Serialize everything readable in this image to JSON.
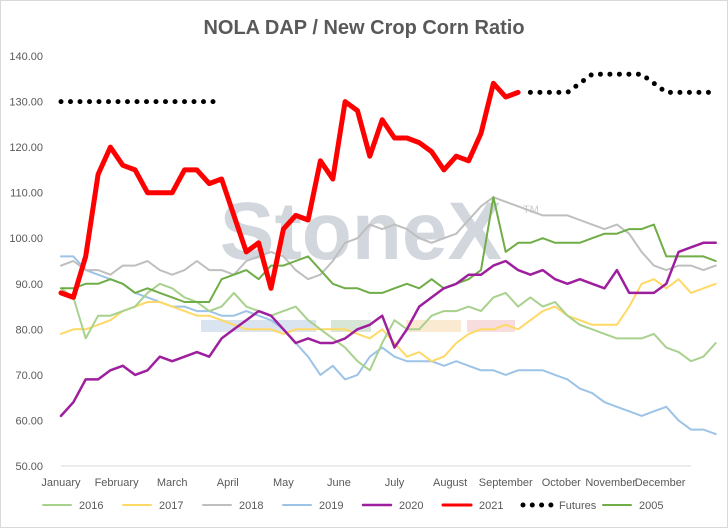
{
  "chart_data": {
    "type": "line",
    "title": "NOLA DAP / New Crop Corn Ratio",
    "watermark": "StoneX",
    "watermark_mark": "TM",
    "x_unit": "week",
    "xlim": [
      1,
      52
    ],
    "ylim": [
      50,
      140
    ],
    "yticks": [
      "50.00",
      "60.00",
      "70.00",
      "80.00",
      "90.00",
      "100.00",
      "110.00",
      "120.00",
      "130.00",
      "140.00"
    ],
    "xticks": [
      {
        "label": "January",
        "x": 1
      },
      {
        "label": "February",
        "x": 5.5
      },
      {
        "label": "March",
        "x": 10
      },
      {
        "label": "April",
        "x": 14.5
      },
      {
        "label": "May",
        "x": 19
      },
      {
        "label": "June",
        "x": 23.5
      },
      {
        "label": "July",
        "x": 28
      },
      {
        "label": "August",
        "x": 32.5
      },
      {
        "label": "September",
        "x": 37
      },
      {
        "label": "October",
        "x": 41.5
      },
      {
        "label": "November",
        "x": 45.5
      },
      {
        "label": "December",
        "x": 49.5
      }
    ],
    "grid": false,
    "legend_position": "bottom",
    "series": [
      {
        "name": "2016",
        "color": "#a9d18e",
        "width": 2,
        "style": "solid",
        "values": [
          89,
          87,
          78,
          83,
          83,
          84,
          85,
          88,
          90,
          89,
          87,
          86,
          84,
          85,
          88,
          85,
          84,
          83,
          84,
          85,
          82,
          80,
          78,
          76,
          73,
          71,
          77,
          82,
          80,
          80,
          83,
          84,
          84,
          85,
          84,
          87,
          88,
          85,
          87,
          85,
          86,
          83,
          81,
          80,
          79,
          78,
          78,
          78,
          79,
          76,
          75,
          73,
          74,
          77
        ]
      },
      {
        "name": "2017",
        "color": "#ffd966",
        "width": 2,
        "style": "solid",
        "values": [
          79,
          80,
          80,
          81,
          82,
          84,
          85,
          86,
          86,
          85,
          84,
          83,
          83,
          82,
          81,
          80,
          80,
          80,
          79,
          80,
          80,
          80,
          80,
          80,
          79,
          78,
          80,
          77,
          74,
          75,
          73,
          74,
          77,
          79,
          80,
          80,
          81,
          80,
          82,
          84,
          85,
          83,
          82,
          81,
          81,
          81,
          85,
          90,
          91,
          89,
          91,
          88,
          89,
          90
        ]
      },
      {
        "name": "2018",
        "color": "#bfbfbf",
        "width": 2,
        "style": "solid",
        "values": [
          94,
          95,
          93,
          93,
          92,
          94,
          94,
          95,
          93,
          92,
          93,
          95,
          93,
          93,
          92,
          95,
          96,
          97,
          96,
          93,
          91,
          92,
          95,
          99,
          100,
          103,
          102,
          103,
          102,
          100,
          99,
          100,
          101,
          104,
          107,
          109,
          108,
          107,
          106,
          105,
          105,
          105,
          104,
          103,
          102,
          103,
          101,
          97,
          94,
          93,
          94,
          94,
          93,
          94
        ]
      },
      {
        "name": "2019",
        "color": "#9dc3e6",
        "width": 2,
        "style": "solid",
        "values": [
          96,
          96,
          93,
          92,
          91,
          90,
          88,
          87,
          86,
          85,
          85,
          84,
          84,
          83,
          83,
          84,
          83,
          82,
          80,
          77,
          74,
          70,
          72,
          69,
          70,
          74,
          76,
          74,
          73,
          73,
          73,
          72,
          73,
          72,
          71,
          71,
          70,
          71,
          71,
          71,
          70,
          69,
          67,
          66,
          64,
          63,
          62,
          61,
          62,
          63,
          60,
          58,
          58,
          57
        ]
      },
      {
        "name": "2020",
        "color": "#9e1f9e",
        "width": 2.5,
        "style": "solid",
        "values": [
          61,
          64,
          69,
          69,
          71,
          72,
          70,
          71,
          74,
          73,
          74,
          75,
          74,
          78,
          80,
          82,
          84,
          83,
          80,
          77,
          78,
          77,
          77,
          78,
          80,
          81,
          83,
          76,
          80,
          85,
          87,
          89,
          90,
          92,
          92,
          94,
          95,
          93,
          92,
          93,
          91,
          90,
          91,
          90,
          89,
          93,
          88,
          88,
          88,
          90,
          97,
          98,
          99,
          99
        ]
      },
      {
        "name": "2021",
        "color": "#ff0000",
        "width": 5,
        "style": "solid",
        "values": [
          88,
          87,
          96,
          114,
          120,
          116,
          115,
          110,
          110,
          110,
          115,
          115,
          112,
          113,
          105,
          97,
          99,
          89,
          102,
          105,
          104,
          117,
          113,
          130,
          128,
          118,
          126,
          122,
          122,
          121,
          119,
          115,
          118,
          117,
          123,
          134,
          131,
          132
        ]
      },
      {
        "name": "Futures",
        "color": "#000000",
        "width": 5,
        "style": "dotted",
        "segments": [
          {
            "x": [
              1,
              2,
              3,
              4,
              5,
              6,
              7,
              8,
              9,
              10,
              11,
              12,
              13,
              14
            ],
            "values": [
              130,
              130,
              130,
              130,
              130,
              130,
              130,
              130,
              130,
              130,
              130,
              130,
              130,
              130
            ]
          },
          {
            "x": [
              39,
              40,
              41,
              42,
              43,
              44,
              45,
              46,
              47,
              48,
              49,
              50,
              51,
              52,
              53,
              54
            ],
            "values": [
              132,
              132,
              132,
              132,
              134,
              136,
              136,
              136,
              136,
              136,
              134,
              132,
              132,
              132,
              132,
              132
            ]
          }
        ]
      },
      {
        "name": "2005",
        "color": "#70ad47",
        "width": 2,
        "style": "solid",
        "values": [
          89,
          89,
          90,
          90,
          91,
          90,
          88,
          89,
          88,
          87,
          86,
          86,
          86,
          91,
          92,
          93,
          91,
          94,
          94,
          95,
          96,
          93,
          90,
          89,
          89,
          88,
          88,
          89,
          90,
          89,
          91,
          89,
          90,
          91,
          93,
          109,
          97,
          99,
          99,
          100,
          99,
          99,
          99,
          100,
          101,
          101,
          102,
          102,
          103,
          96,
          96,
          96,
          96,
          95
        ]
      }
    ]
  }
}
